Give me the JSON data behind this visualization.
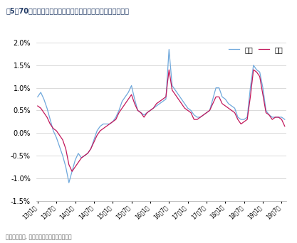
{
  "title": "图5：70个大中城市新建及二手商品住宅销售价格环比变动情况",
  "source": "（国家统计局, 第一太平戴维斯市场研究部）",
  "legend_new": "新建",
  "legend_second": "二手",
  "color_new": "#6FA8DC",
  "color_second": "#C2185B",
  "new_build": [
    0.8,
    0.9,
    0.75,
    0.55,
    0.3,
    0.05,
    -0.1,
    -0.3,
    -0.5,
    -0.75,
    -1.1,
    -0.85,
    -0.6,
    -0.45,
    -0.55,
    -0.5,
    -0.45,
    -0.35,
    -0.15,
    0.05,
    0.15,
    0.2,
    0.2,
    0.2,
    0.25,
    0.35,
    0.5,
    0.7,
    0.8,
    0.9,
    1.05,
    0.75,
    0.5,
    0.45,
    0.4,
    0.45,
    0.5,
    0.55,
    0.6,
    0.65,
    0.7,
    0.75,
    1.85,
    1.05,
    0.95,
    0.85,
    0.75,
    0.65,
    0.55,
    0.5,
    0.4,
    0.35,
    0.35,
    0.4,
    0.45,
    0.5,
    0.75,
    1.0,
    1.0,
    0.8,
    0.75,
    0.65,
    0.6,
    0.55,
    0.35,
    0.3,
    0.3,
    0.35,
    1.0,
    1.5,
    1.4,
    1.35,
    1.0,
    0.5,
    0.4,
    0.35,
    0.35,
    0.35,
    0.35,
    0.3
  ],
  "second_hand": [
    0.6,
    0.55,
    0.45,
    0.35,
    0.2,
    0.1,
    0.05,
    -0.05,
    -0.15,
    -0.35,
    -0.7,
    -0.85,
    -0.75,
    -0.65,
    -0.55,
    -0.5,
    -0.45,
    -0.35,
    -0.2,
    -0.05,
    0.05,
    0.1,
    0.15,
    0.2,
    0.25,
    0.3,
    0.45,
    0.55,
    0.65,
    0.75,
    0.85,
    0.65,
    0.5,
    0.45,
    0.35,
    0.45,
    0.5,
    0.55,
    0.65,
    0.7,
    0.75,
    0.8,
    1.4,
    0.95,
    0.85,
    0.75,
    0.65,
    0.55,
    0.5,
    0.45,
    0.3,
    0.3,
    0.35,
    0.4,
    0.45,
    0.5,
    0.65,
    0.8,
    0.8,
    0.65,
    0.6,
    0.55,
    0.5,
    0.45,
    0.3,
    0.2,
    0.25,
    0.3,
    0.8,
    1.4,
    1.35,
    1.25,
    0.85,
    0.45,
    0.4,
    0.3,
    0.35,
    0.35,
    0.3,
    0.15
  ],
  "ylim": [
    -1.5,
    2.0
  ],
  "yticks": [
    -1.5,
    -1.0,
    -0.5,
    0.0,
    0.5,
    1.0,
    1.5,
    2.0
  ],
  "n_points": 80,
  "x_tick_positions": [
    0,
    6,
    12,
    18,
    24,
    30,
    36,
    42,
    48,
    54,
    60,
    66,
    72,
    78
  ],
  "x_tick_labels": [
    "13年1月",
    "13年7月",
    "14年1月",
    "14年7月",
    "15年1月",
    "15年7月",
    "16年1月",
    "16年7月",
    "17年1月",
    "17年7月",
    "18年1月",
    "18年7月",
    "19年1月",
    "19年7月"
  ]
}
